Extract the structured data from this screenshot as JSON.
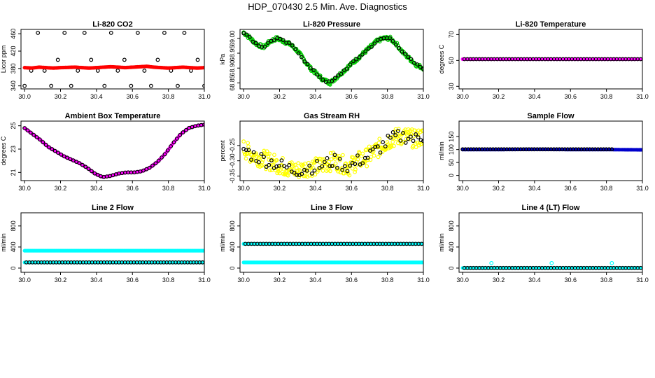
{
  "page_title": "HDP_070430  2.5 Min. Ave. Diagnostics",
  "colors": {
    "black": "#000000",
    "red": "#ff0000",
    "green": "#00cc00",
    "yellow": "#ffff00",
    "magenta": "#ff00ff",
    "blue": "#0000cc",
    "cyan": "#00ffff"
  },
  "chart_data": [
    {
      "type": "scatter",
      "title": "Li-820 CO2",
      "ylabel": "Licor ppm",
      "xlim": [
        29.98,
        31.0
      ],
      "ylim": [
        333,
        470
      ],
      "xticks": [
        "30.0",
        "30.2",
        "30.4",
        "30.6",
        "30.8",
        "31.0"
      ],
      "yticks": [
        {
          "v": 340,
          "label": "340"
        },
        {
          "v": 380,
          "label": "380"
        },
        {
          "v": 420,
          "label": "420"
        },
        {
          "v": 460,
          "label": "460"
        }
      ],
      "series": [
        {
          "name": "outliers",
          "color": "black",
          "style": "circle",
          "x0": 30.0,
          "x1": 31.0,
          "n": 28,
          "y": [
            340,
            375,
            462,
            375,
            340,
            400,
            462,
            340,
            375,
            462,
            400,
            375,
            340,
            462,
            375,
            400,
            340,
            462,
            375,
            340,
            400,
            462,
            375,
            340,
            462,
            375,
            400,
            340
          ]
        },
        {
          "name": "co2",
          "color": "red",
          "style": "filled",
          "x0": 30.0,
          "x1": 31.0,
          "n": 160,
          "y": [
            382,
            381,
            383,
            382,
            381,
            382,
            382.5,
            383,
            382,
            381,
            382,
            383,
            384,
            383,
            382,
            383,
            384,
            385,
            383,
            382,
            381,
            382,
            383,
            382,
            381,
            382
          ]
        }
      ]
    },
    {
      "type": "scatter",
      "title": "Li-820 Pressure",
      "ylabel": "kPa",
      "xlim": [
        29.98,
        31.0
      ],
      "ylim": [
        68.83,
        69.03
      ],
      "xticks": [
        "30.0",
        "30.2",
        "30.4",
        "30.6",
        "30.8",
        "31.0"
      ],
      "yticks": [
        {
          "v": 68.85,
          "label": "68.85"
        },
        {
          "v": 68.9,
          "label": "68.90"
        },
        {
          "v": 68.95,
          "label": "68.95"
        },
        {
          "v": 69.0,
          "label": "69.00"
        }
      ],
      "series": [
        {
          "name": "pressure",
          "color": "green",
          "style": "circle",
          "x0": 30.0,
          "x1": 31.0,
          "n": 240,
          "jitter": 0.006,
          "y": [
            69.02,
            69.0,
            68.98,
            68.97,
            68.99,
            69.0,
            68.99,
            68.98,
            68.96,
            68.93,
            68.9,
            68.88,
            68.86,
            68.85,
            68.87,
            68.89,
            68.91,
            68.93,
            68.95,
            68.97,
            68.99,
            69.0,
            69.0,
            68.98,
            68.95,
            68.93,
            68.91,
            68.9
          ]
        },
        {
          "name": "pressure-ave",
          "color": "black",
          "style": "circle",
          "x0": 30.0,
          "x1": 31.0,
          "n": 60,
          "jitter": 0.004,
          "y": [
            69.02,
            69.0,
            68.98,
            68.97,
            68.99,
            69.0,
            68.99,
            68.98,
            68.96,
            68.93,
            68.9,
            68.88,
            68.86,
            68.85,
            68.87,
            68.89,
            68.91,
            68.93,
            68.95,
            68.97,
            68.99,
            69.0,
            69.0,
            68.98,
            68.95,
            68.93,
            68.91,
            68.9
          ]
        }
      ]
    },
    {
      "type": "scatter",
      "title": "Li-820 Temperature",
      "ylabel": "degrees C",
      "xlim": [
        29.98,
        31.0
      ],
      "ylim": [
        28,
        74
      ],
      "xticks": [
        "30.0",
        "30.2",
        "30.4",
        "30.6",
        "30.8",
        "31.0"
      ],
      "yticks": [
        {
          "v": 30,
          "label": "30"
        },
        {
          "v": 50,
          "label": "50"
        },
        {
          "v": 70,
          "label": "70"
        }
      ],
      "series": [
        {
          "name": "temp",
          "color": "magenta",
          "style": "filled",
          "x0": 30.0,
          "x1": 31.0,
          "n": 80,
          "y": [
            51,
            51
          ]
        },
        {
          "name": "temp-ave",
          "color": "black",
          "style": "circle",
          "x0": 30.01,
          "x1": 30.99,
          "n": 60,
          "y": [
            51,
            51
          ]
        }
      ]
    },
    {
      "type": "scatter",
      "title": "Ambient Box Temperature",
      "ylabel": "degrees C",
      "xlim": [
        29.98,
        31.0
      ],
      "ylim": [
        20.3,
        25.4
      ],
      "xticks": [
        "30.0",
        "30.2",
        "30.4",
        "30.6",
        "30.8",
        "31.0"
      ],
      "yticks": [
        {
          "v": 21,
          "label": "21"
        },
        {
          "v": 23,
          "label": "23"
        },
        {
          "v": 25,
          "label": "25"
        }
      ],
      "series": [
        {
          "name": "ambient",
          "color": "magenta",
          "style": "filled",
          "x0": 30.0,
          "x1": 31.0,
          "n": 150,
          "y": [
            24.8,
            24.3,
            23.8,
            23.2,
            22.8,
            22.4,
            22.1,
            21.8,
            21.4,
            20.9,
            20.6,
            20.7,
            20.9,
            21.0,
            21.0,
            21.1,
            21.4,
            21.9,
            22.6,
            23.5,
            24.3,
            24.8,
            25.0,
            25.1
          ]
        },
        {
          "name": "ambient-ave",
          "color": "black",
          "style": "circle",
          "x0": 30.0,
          "x1": 31.0,
          "n": 60,
          "y": [
            24.8,
            24.3,
            23.8,
            23.2,
            22.8,
            22.4,
            22.1,
            21.8,
            21.4,
            20.9,
            20.6,
            20.7,
            20.9,
            21.0,
            21.0,
            21.1,
            21.4,
            21.9,
            22.6,
            23.5,
            24.3,
            24.8,
            25.0,
            25.1
          ]
        }
      ]
    },
    {
      "type": "scatter",
      "title": "Gas Stream RH",
      "ylabel": "percent",
      "xlim": [
        29.98,
        31.0
      ],
      "ylim": [
        -0.365,
        -0.17
      ],
      "xticks": [
        "30.0",
        "30.2",
        "30.4",
        "30.6",
        "30.8",
        "31.0"
      ],
      "yticks": [
        {
          "v": -0.35,
          "label": "-0.35"
        },
        {
          "v": -0.3,
          "label": "-0.30"
        },
        {
          "v": -0.25,
          "label": "-0.25"
        }
      ],
      "series": [
        {
          "name": "rh",
          "color": "yellow",
          "style": "circle",
          "x0": 30.0,
          "x1": 31.0,
          "n": 300,
          "jitter": 0.03,
          "y": [
            -0.26,
            -0.28,
            -0.29,
            -0.3,
            -0.31,
            -0.32,
            -0.33,
            -0.33,
            -0.32,
            -0.32,
            -0.31,
            -0.3,
            -0.31,
            -0.32,
            -0.3,
            -0.29,
            -0.27,
            -0.25,
            -0.23,
            -0.22,
            -0.22,
            -0.23,
            -0.22
          ]
        },
        {
          "name": "rh-ave",
          "color": "black",
          "style": "circle",
          "x0": 30.0,
          "x1": 31.0,
          "n": 72,
          "jitter": 0.022,
          "y": [
            -0.26,
            -0.28,
            -0.29,
            -0.3,
            -0.31,
            -0.32,
            -0.33,
            -0.33,
            -0.32,
            -0.32,
            -0.31,
            -0.3,
            -0.31,
            -0.32,
            -0.3,
            -0.29,
            -0.27,
            -0.25,
            -0.23,
            -0.22,
            -0.22,
            -0.23,
            -0.22
          ]
        }
      ]
    },
    {
      "type": "scatter",
      "title": "Sample Flow",
      "ylabel": "ml/min",
      "xlim": [
        29.98,
        31.0
      ],
      "ylim": [
        -20,
        210
      ],
      "xticks": [
        "30.0",
        "30.2",
        "30.4",
        "30.6",
        "30.8",
        "31.0"
      ],
      "yticks": [
        {
          "v": 0,
          "label": "0"
        },
        {
          "v": 50,
          "label": "50"
        },
        {
          "v": 100,
          "label": "100"
        },
        {
          "v": 150,
          "label": "150"
        }
      ],
      "series": [
        {
          "name": "flow",
          "color": "blue",
          "style": "filled",
          "x0": 30.0,
          "x1": 31.0,
          "n": 120,
          "y": [
            100,
            100,
            101,
            100,
            100,
            99
          ]
        },
        {
          "name": "flow-ave",
          "color": "black",
          "style": "circle",
          "x0": 30.0,
          "x1": 30.83,
          "n": 55,
          "y": [
            101,
            101
          ]
        }
      ]
    },
    {
      "type": "scatter",
      "title": "Line 2 Flow",
      "ylabel": "ml/min",
      "xlim": [
        29.98,
        31.0
      ],
      "ylim": [
        -80,
        1050
      ],
      "xticks": [
        "30.0",
        "30.2",
        "30.4",
        "30.6",
        "30.8",
        "31.0"
      ],
      "yticks": [
        {
          "v": 0,
          "label": "0"
        },
        {
          "v": 400,
          "label": "400"
        },
        {
          "v": 800,
          "label": "800"
        }
      ],
      "series": [
        {
          "name": "line2-upper",
          "color": "cyan",
          "style": "filled",
          "x0": 30.0,
          "x1": 31.0,
          "n": 160,
          "y": [
            330,
            330
          ]
        },
        {
          "name": "line2-lower",
          "color": "cyan",
          "style": "filled",
          "x0": 30.0,
          "x1": 31.0,
          "n": 160,
          "y": [
            108,
            108
          ]
        },
        {
          "name": "line2-ave",
          "color": "black",
          "style": "circle",
          "x0": 30.01,
          "x1": 30.99,
          "n": 60,
          "y": [
            108,
            108
          ]
        }
      ]
    },
    {
      "type": "scatter",
      "title": "Line 3 Flow",
      "ylabel": "ml/min",
      "xlim": [
        29.98,
        31.0
      ],
      "ylim": [
        -80,
        1050
      ],
      "xticks": [
        "30.0",
        "30.2",
        "30.4",
        "30.6",
        "30.8",
        "31.0"
      ],
      "yticks": [
        {
          "v": 0,
          "label": "0"
        },
        {
          "v": 400,
          "label": "400"
        },
        {
          "v": 800,
          "label": "800"
        }
      ],
      "series": [
        {
          "name": "line3-upper",
          "color": "cyan",
          "style": "filled",
          "x0": 30.0,
          "x1": 31.0,
          "n": 160,
          "y": [
            460,
            460
          ]
        },
        {
          "name": "line3-ave",
          "color": "black",
          "style": "circle",
          "x0": 30.01,
          "x1": 30.99,
          "n": 60,
          "y": [
            460,
            460
          ]
        },
        {
          "name": "line3-lower",
          "color": "cyan",
          "style": "filled",
          "x0": 30.0,
          "x1": 31.0,
          "n": 200,
          "y": [
            108,
            108
          ]
        }
      ]
    },
    {
      "type": "scatter",
      "title": "Line 4 (LT) Flow",
      "ylabel": "ml/min",
      "xlim": [
        29.98,
        31.0
      ],
      "ylim": [
        -80,
        1050
      ],
      "xticks": [
        "30.0",
        "30.2",
        "30.4",
        "30.6",
        "30.8",
        "31.0"
      ],
      "yticks": [
        {
          "v": 0,
          "label": "0"
        },
        {
          "v": 400,
          "label": "400"
        },
        {
          "v": 800,
          "label": "800"
        }
      ],
      "series": [
        {
          "name": "line4",
          "color": "cyan",
          "style": "filled",
          "x0": 30.0,
          "x1": 31.0,
          "n": 120,
          "y": [
            2,
            2
          ]
        },
        {
          "name": "line4-ave",
          "color": "black",
          "style": "circle",
          "x0": 30.01,
          "x1": 30.99,
          "n": 60,
          "y": [
            2,
            2
          ]
        },
        {
          "name": "line4-spikes",
          "color": "cyan",
          "style": "circle",
          "x0": 30.16,
          "x1": 30.83,
          "n": 3,
          "y": [
            95,
            95
          ]
        }
      ]
    }
  ]
}
